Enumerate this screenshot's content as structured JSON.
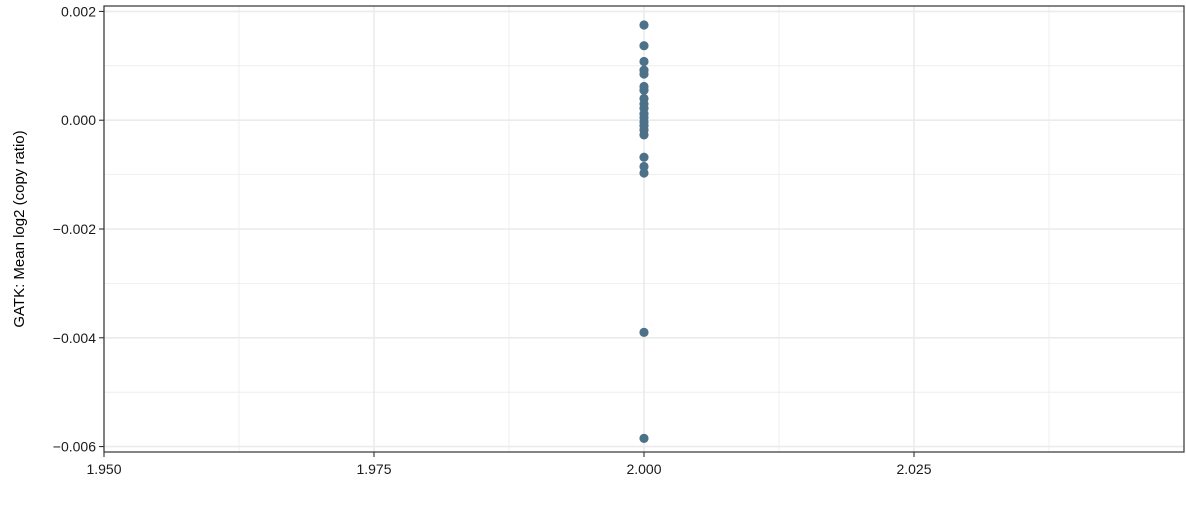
{
  "chart_data": {
    "type": "scatter",
    "title": "",
    "xlabel": "",
    "ylabel": "GATK: Mean log2 (copy ratio)",
    "xlim": [
      1.95,
      2.05
    ],
    "ylim": [
      -0.0061,
      0.0021
    ],
    "x_ticks": [
      1.95,
      1.975,
      2.0,
      2.025
    ],
    "x_tick_labels": [
      "1.950",
      "1.975",
      "2.000",
      "2.025"
    ],
    "y_ticks": [
      -0.006,
      -0.004,
      -0.002,
      0.0,
      0.002
    ],
    "y_tick_labels": [
      "−0.006",
      "−0.004",
      "−0.002",
      "0.000",
      "0.002"
    ],
    "grid": true,
    "point_color": "#4c7189",
    "points": [
      {
        "x": 2.0,
        "y": 0.00175
      },
      {
        "x": 2.0,
        "y": 0.00137
      },
      {
        "x": 2.0,
        "y": 0.00108
      },
      {
        "x": 2.0,
        "y": 0.00092
      },
      {
        "x": 2.0,
        "y": 0.00085
      },
      {
        "x": 2.0,
        "y": 0.00062
      },
      {
        "x": 2.0,
        "y": 0.00055
      },
      {
        "x": 2.0,
        "y": 0.0004
      },
      {
        "x": 2.0,
        "y": 0.0003
      },
      {
        "x": 2.0,
        "y": 0.00022
      },
      {
        "x": 2.0,
        "y": 0.00012
      },
      {
        "x": 2.0,
        "y": 5e-05
      },
      {
        "x": 2.0,
        "y": -3e-05
      },
      {
        "x": 2.0,
        "y": -0.0001
      },
      {
        "x": 2.0,
        "y": -0.00018
      },
      {
        "x": 2.0,
        "y": -0.00027
      },
      {
        "x": 2.0,
        "y": -0.00068
      },
      {
        "x": 2.0,
        "y": -0.00085
      },
      {
        "x": 2.0,
        "y": -0.00097
      },
      {
        "x": 2.0,
        "y": -0.0039
      },
      {
        "x": 2.0,
        "y": -0.00585
      }
    ]
  }
}
